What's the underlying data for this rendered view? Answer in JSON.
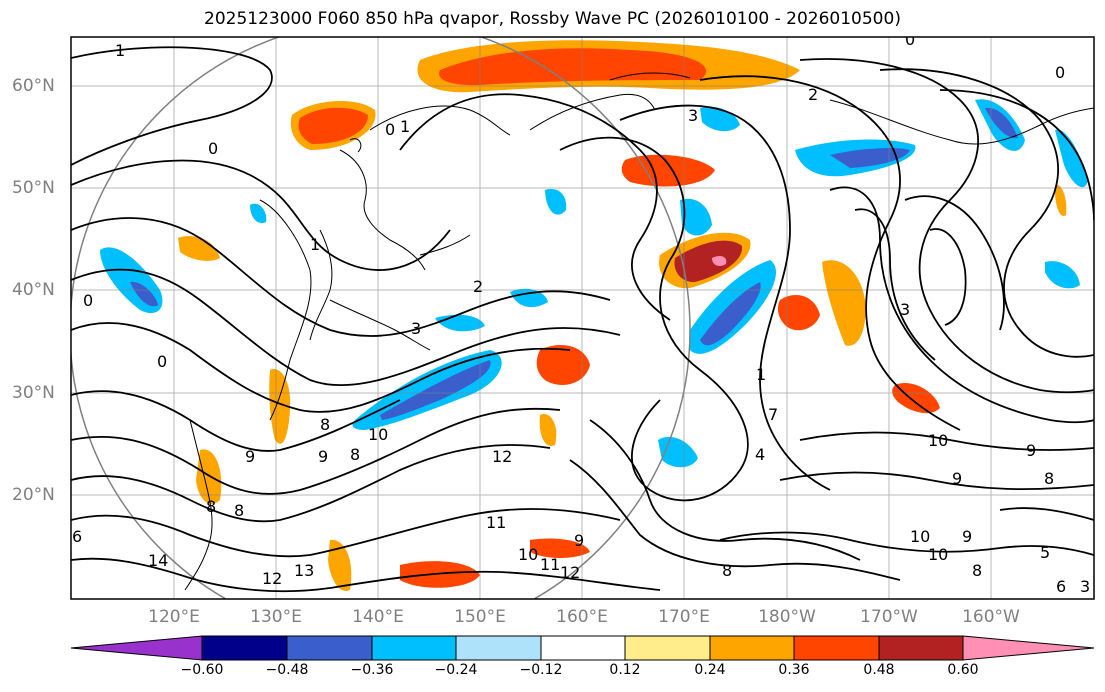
{
  "title": "2025123000 F060 850 hPa qvapor, Rossby Wave PC (2026010100 - 2026010500)",
  "map": {
    "lat_labels": [
      "60°N",
      "50°N",
      "40°N",
      "30°N",
      "20°N"
    ],
    "lon_labels": [
      "120°E",
      "130°E",
      "140°E",
      "150°E",
      "160°E",
      "170°E",
      "180°W",
      "170°W",
      "160°W"
    ],
    "contour_labels": [
      "1",
      "0",
      "0",
      "0",
      "0",
      "1",
      "1",
      "0",
      "3",
      "2",
      "3",
      "0",
      "3",
      "2",
      "9",
      "9",
      "8",
      "10",
      "8",
      "12",
      "11",
      "11",
      "13",
      "14",
      "12",
      "9",
      "10",
      "12",
      "8",
      "9",
      "10",
      "9",
      "8",
      "10",
      "10",
      "9",
      "8",
      "6",
      "5",
      "7",
      "4",
      "1",
      "8",
      "8",
      "3",
      "6"
    ],
    "colors": {
      "coast": "#000000",
      "grid": "#808080",
      "contour": "#000000"
    }
  },
  "colorbar": {
    "ticks": [
      "−0.60",
      "−0.48",
      "−0.36",
      "−0.24",
      "−0.12",
      "0.12",
      "0.24",
      "0.36",
      "0.48",
      "0.60"
    ],
    "colors": [
      "#9932cc",
      "#00008b",
      "#3a5fcd",
      "#00bfff",
      "#aee1fa",
      "#ffffff",
      "#ffec8b",
      "#ffa500",
      "#ff4500",
      "#b22222",
      "#ff8fb4"
    ]
  }
}
